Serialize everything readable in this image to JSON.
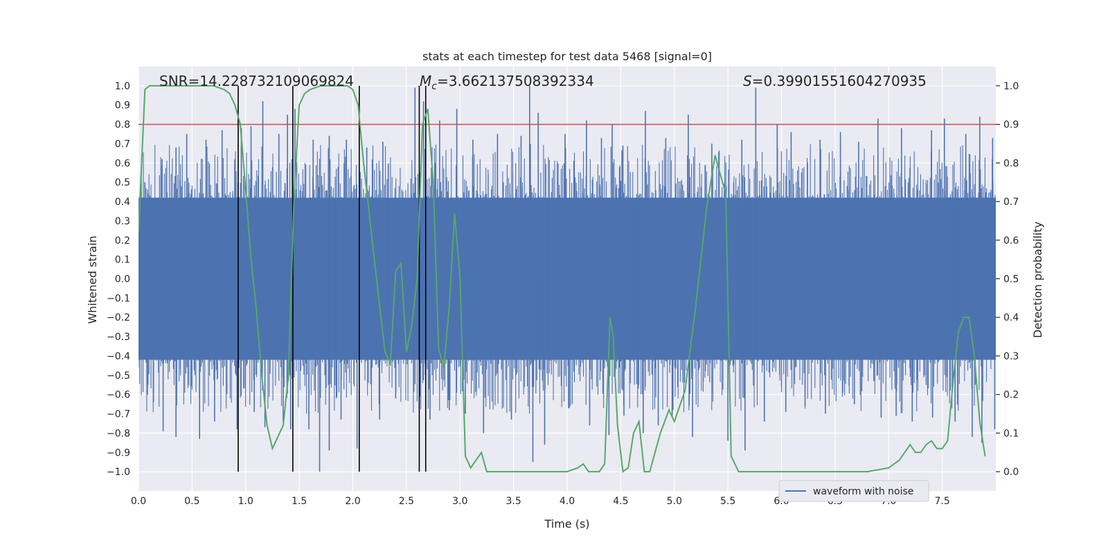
{
  "chart_data": {
    "type": "line",
    "title": "stats at each timestep for test data 5468 [signal=0]",
    "xlabel": "Time (s)",
    "ylabel_left": "Whitened strain",
    "ylabel_right": "Detection probability",
    "xlim": [
      0,
      8
    ],
    "ylim_left": [
      -1.1,
      1.1
    ],
    "ylim_right": [
      -0.05,
      1.05
    ],
    "x_ticks": [
      0.0,
      0.5,
      1.0,
      1.5,
      2.0,
      2.5,
      3.0,
      3.5,
      4.0,
      4.5,
      5.0,
      5.5,
      6.0,
      6.5,
      7.0,
      7.5
    ],
    "x_tick_labels": [
      "0.0",
      "0.5",
      "1.0",
      "1.5",
      "2.0",
      "2.5",
      "3.0",
      "3.5",
      "4.0",
      "4.5",
      "5.0",
      "5.5",
      "6.0",
      "6.5",
      "7.0",
      "7.5"
    ],
    "y_left_ticks": [
      1.0,
      0.9,
      0.8,
      0.7,
      0.6,
      0.5,
      0.4,
      0.3,
      0.2,
      0.1,
      0.0,
      -0.1,
      -0.2,
      -0.3,
      -0.4,
      -0.5,
      -0.6,
      -0.7,
      -0.8,
      -0.9,
      -1.0
    ],
    "y_left_tick_labels": [
      "1.0",
      "0.9",
      "0.8",
      "0.7",
      "0.6",
      "0.5",
      "0.4",
      "0.3",
      "0.2",
      "0.1",
      "0.0",
      "−0.1",
      "−0.2",
      "−0.3",
      "−0.4",
      "−0.5",
      "−0.6",
      "−0.7",
      "−0.8",
      "−0.9",
      "−1.0"
    ],
    "y_right_ticks": [
      1.0,
      0.9,
      0.8,
      0.7,
      0.6,
      0.5,
      0.4,
      0.3,
      0.2,
      0.1,
      0.0
    ],
    "y_right_tick_labels": [
      "1.0",
      "0.9",
      "0.8",
      "0.7",
      "0.6",
      "0.5",
      "0.4",
      "0.3",
      "0.2",
      "0.1",
      "0.0"
    ],
    "grid": true,
    "annotations": {
      "snr": "SNR=14.228732109069824",
      "mc_symbol": "M",
      "mc_sub": "c",
      "mc_value": "=3.662137508392334",
      "s_symbol": "S",
      "s_value": "=0.39901551604270935"
    },
    "legend": {
      "placement": "lower-right",
      "entries": [
        "waveform with noise"
      ]
    },
    "threshold": {
      "value": 0.8,
      "axis": "left",
      "color": "#c44e52"
    },
    "vertical_lines": [
      0.93,
      1.44,
      2.06,
      2.62,
      2.68
    ],
    "series": [
      {
        "name": "waveform with noise",
        "axis": "left",
        "color": "#4c72b0",
        "envelope_upper": 0.42,
        "envelope_lower": -0.42,
        "peaks": [
          [
            0.06,
            0.5
          ],
          [
            0.22,
            0.62
          ],
          [
            0.35,
            0.68
          ],
          [
            0.45,
            0.75
          ],
          [
            0.63,
            0.72
          ],
          [
            0.78,
            0.77
          ],
          [
            0.96,
            0.78
          ],
          [
            1.05,
            0.79
          ],
          [
            1.16,
            0.92
          ],
          [
            1.31,
            0.75
          ],
          [
            1.39,
            0.85
          ],
          [
            1.46,
            0.88
          ],
          [
            1.63,
            0.72
          ],
          [
            1.78,
            0.74
          ],
          [
            1.94,
            0.72
          ],
          [
            2.13,
            0.68
          ],
          [
            2.28,
            0.71
          ],
          [
            2.58,
            0.99
          ],
          [
            2.66,
            0.92
          ],
          [
            2.81,
            0.82
          ],
          [
            2.97,
            0.88
          ],
          [
            3.12,
            0.72
          ],
          [
            3.35,
            0.75
          ],
          [
            3.57,
            0.74
          ],
          [
            3.65,
            1.0
          ],
          [
            3.73,
            0.86
          ],
          [
            3.98,
            0.75
          ],
          [
            4.18,
            0.82
          ],
          [
            4.32,
            0.73
          ],
          [
            4.42,
            0.8
          ],
          [
            4.52,
            0.69
          ],
          [
            4.73,
            0.87
          ],
          [
            4.92,
            0.73
          ],
          [
            5.13,
            0.85
          ],
          [
            5.35,
            0.7
          ],
          [
            5.63,
            0.72
          ],
          [
            5.76,
            0.99
          ],
          [
            5.96,
            0.8
          ],
          [
            6.09,
            0.76
          ],
          [
            6.36,
            0.72
          ],
          [
            6.55,
            0.76
          ],
          [
            6.72,
            0.71
          ],
          [
            6.9,
            0.83
          ],
          [
            7.12,
            0.78
          ],
          [
            7.4,
            0.77
          ],
          [
            7.52,
            0.83
          ],
          [
            7.72,
            0.75
          ],
          [
            7.85,
            0.84
          ],
          [
            7.97,
            0.73
          ]
        ],
        "troughs": [
          [
            0.14,
            -0.64
          ],
          [
            0.23,
            -0.79
          ],
          [
            0.35,
            -0.82
          ],
          [
            0.57,
            -0.83
          ],
          [
            0.71,
            -0.74
          ],
          [
            0.92,
            -0.78
          ],
          [
            1.08,
            -0.69
          ],
          [
            1.18,
            -0.77
          ],
          [
            1.35,
            -0.74
          ],
          [
            1.42,
            -0.78
          ],
          [
            1.59,
            -0.78
          ],
          [
            1.69,
            -1.0
          ],
          [
            1.78,
            -0.89
          ],
          [
            1.89,
            -0.73
          ],
          [
            2.04,
            -0.88
          ],
          [
            2.25,
            -0.73
          ],
          [
            2.4,
            -0.62
          ],
          [
            2.72,
            -0.73
          ],
          [
            2.9,
            -0.68
          ],
          [
            3.05,
            -0.7
          ],
          [
            3.22,
            -0.8
          ],
          [
            3.48,
            -0.73
          ],
          [
            3.68,
            -0.95
          ],
          [
            3.79,
            -0.86
          ],
          [
            4.02,
            -0.67
          ],
          [
            4.21,
            -0.76
          ],
          [
            4.39,
            -0.81
          ],
          [
            4.53,
            -0.71
          ],
          [
            4.71,
            -0.8
          ],
          [
            4.85,
            -0.76
          ],
          [
            4.98,
            -0.71
          ],
          [
            5.17,
            -0.82
          ],
          [
            5.5,
            -0.84
          ],
          [
            5.66,
            -0.89
          ],
          [
            5.84,
            -0.74
          ],
          [
            6.04,
            -0.69
          ],
          [
            6.22,
            -0.66
          ],
          [
            6.41,
            -0.7
          ],
          [
            6.68,
            -0.65
          ],
          [
            6.93,
            -0.72
          ],
          [
            7.07,
            -0.71
          ],
          [
            7.22,
            -0.74
          ],
          [
            7.41,
            -0.72
          ],
          [
            7.62,
            -0.74
          ],
          [
            7.78,
            -0.82
          ],
          [
            7.87,
            -0.85
          ],
          [
            7.99,
            -0.78
          ]
        ]
      },
      {
        "name": "",
        "axis": "right",
        "color": "#55a868",
        "points": [
          [
            0.0,
            0.62
          ],
          [
            0.06,
            0.99
          ],
          [
            0.1,
            1.0
          ],
          [
            0.25,
            1.0
          ],
          [
            0.5,
            1.0
          ],
          [
            0.7,
            1.0
          ],
          [
            0.8,
            0.99
          ],
          [
            0.85,
            0.98
          ],
          [
            0.9,
            0.95
          ],
          [
            0.95,
            0.9
          ],
          [
            1.0,
            0.73
          ],
          [
            1.05,
            0.55
          ],
          [
            1.1,
            0.42
          ],
          [
            1.15,
            0.25
          ],
          [
            1.2,
            0.12
          ],
          [
            1.25,
            0.06
          ],
          [
            1.3,
            0.09
          ],
          [
            1.35,
            0.12
          ],
          [
            1.4,
            0.25
          ],
          [
            1.45,
            0.7
          ],
          [
            1.5,
            0.95
          ],
          [
            1.55,
            0.98
          ],
          [
            1.6,
            0.99
          ],
          [
            1.7,
            1.0
          ],
          [
            1.8,
            1.0
          ],
          [
            1.9,
            1.0
          ],
          [
            1.95,
            1.0
          ],
          [
            2.0,
            0.99
          ],
          [
            2.05,
            0.95
          ],
          [
            2.1,
            0.8
          ],
          [
            2.2,
            0.55
          ],
          [
            2.3,
            0.31
          ],
          [
            2.35,
            0.28
          ],
          [
            2.4,
            0.52
          ],
          [
            2.45,
            0.54
          ],
          [
            2.5,
            0.31
          ],
          [
            2.55,
            0.38
          ],
          [
            2.6,
            0.5
          ],
          [
            2.65,
            0.9
          ],
          [
            2.7,
            0.94
          ],
          [
            2.75,
            0.75
          ],
          [
            2.8,
            0.32
          ],
          [
            2.85,
            0.27
          ],
          [
            2.9,
            0.43
          ],
          [
            2.95,
            0.67
          ],
          [
            3.0,
            0.5
          ],
          [
            3.05,
            0.04
          ],
          [
            3.1,
            0.01
          ],
          [
            3.15,
            0.03
          ],
          [
            3.2,
            0.05
          ],
          [
            3.25,
            0.0
          ],
          [
            3.3,
            0.0
          ],
          [
            3.5,
            0.0
          ],
          [
            3.7,
            0.0
          ],
          [
            3.8,
            0.0
          ],
          [
            3.9,
            0.0
          ],
          [
            4.0,
            0.0
          ],
          [
            4.1,
            0.01
          ],
          [
            4.15,
            0.02
          ],
          [
            4.2,
            0.0
          ],
          [
            4.3,
            0.0
          ],
          [
            4.35,
            0.02
          ],
          [
            4.4,
            0.4
          ],
          [
            4.43,
            0.35
          ],
          [
            4.47,
            0.12
          ],
          [
            4.52,
            0.0
          ],
          [
            4.57,
            0.01
          ],
          [
            4.62,
            0.1
          ],
          [
            4.67,
            0.13
          ],
          [
            4.72,
            0.0
          ],
          [
            4.77,
            0.0
          ],
          [
            4.82,
            0.05
          ],
          [
            4.87,
            0.1
          ],
          [
            4.95,
            0.16
          ],
          [
            5.0,
            0.13
          ],
          [
            5.1,
            0.21
          ],
          [
            5.2,
            0.43
          ],
          [
            5.3,
            0.68
          ],
          [
            5.38,
            0.82
          ],
          [
            5.42,
            0.78
          ],
          [
            5.48,
            0.72
          ],
          [
            5.53,
            0.04
          ],
          [
            5.6,
            0.0
          ],
          [
            5.7,
            0.0
          ],
          [
            6.0,
            0.0
          ],
          [
            6.5,
            0.0
          ],
          [
            6.8,
            0.0
          ],
          [
            7.0,
            0.01
          ],
          [
            7.1,
            0.03
          ],
          [
            7.2,
            0.07
          ],
          [
            7.25,
            0.05
          ],
          [
            7.3,
            0.05
          ],
          [
            7.35,
            0.07
          ],
          [
            7.4,
            0.08
          ],
          [
            7.45,
            0.06
          ],
          [
            7.5,
            0.06
          ],
          [
            7.55,
            0.08
          ],
          [
            7.6,
            0.23
          ],
          [
            7.65,
            0.36
          ],
          [
            7.7,
            0.4
          ],
          [
            7.75,
            0.4
          ],
          [
            7.8,
            0.3
          ],
          [
            7.85,
            0.13
          ],
          [
            7.9,
            0.04
          ]
        ]
      }
    ]
  }
}
